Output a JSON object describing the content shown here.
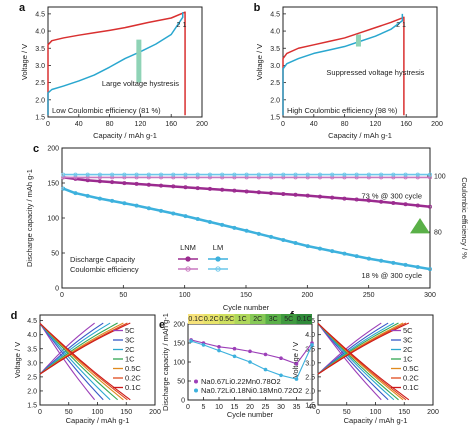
{
  "chart_data": [
    {
      "id": "a",
      "panel_label": "a",
      "type": "line",
      "xlabel": "Capacity / mAh g-1",
      "ylabel": "Voltage / V",
      "xlim": [
        0,
        200
      ],
      "ylim": [
        1.5,
        4.7
      ],
      "xticks": [
        0,
        40,
        80,
        120,
        160,
        200
      ],
      "yticks": [
        1.5,
        2.0,
        2.5,
        3.0,
        3.5,
        4.0,
        4.5
      ],
      "xtick_labels": [
        "0",
        "40",
        "80",
        "120",
        "160",
        "200"
      ],
      "ytick_labels": [
        "1.5",
        "2.0",
        "2.5",
        "3.0",
        "3.5",
        "4.0",
        "4.5"
      ],
      "cycle_labels": [
        "2",
        "1"
      ],
      "annotations": [
        "Large voltage hystresis",
        "Low Coulombic efficiency (81 %)"
      ],
      "series": [
        {
          "name": "1",
          "color": "#d93030",
          "x": [
            0,
            0,
            5,
            20,
            40,
            60,
            80,
            100,
            130,
            160,
            178,
            178
          ],
          "y": [
            1.55,
            3.6,
            3.72,
            3.8,
            3.88,
            3.95,
            4.02,
            4.1,
            4.25,
            4.38,
            4.55,
            1.55
          ]
        },
        {
          "name": "2",
          "color": "#2aa7cf",
          "x": [
            0,
            0,
            5,
            20,
            40,
            60,
            80,
            100,
            120,
            140,
            160,
            175,
            175
          ],
          "y": [
            1.55,
            2.2,
            2.3,
            2.4,
            2.55,
            2.72,
            2.95,
            3.2,
            3.4,
            3.62,
            3.9,
            4.4,
            4.55
          ]
        }
      ]
    },
    {
      "id": "b",
      "panel_label": "b",
      "type": "line",
      "xlabel": "Capacity / mAh g-1",
      "ylabel": "Voltage / V",
      "xlim": [
        0,
        200
      ],
      "ylim": [
        1.5,
        4.7
      ],
      "xticks": [
        0,
        40,
        80,
        120,
        160,
        200
      ],
      "yticks": [
        1.5,
        2.0,
        2.5,
        3.0,
        3.5,
        4.0,
        4.5
      ],
      "xtick_labels": [
        "0",
        "40",
        "80",
        "120",
        "160",
        "200"
      ],
      "ytick_labels": [
        "1.5",
        "2.0",
        "2.5",
        "3.0",
        "3.5",
        "4.0",
        "4.5"
      ],
      "cycle_labels": [
        "2",
        "1"
      ],
      "annotations": [
        "Suppressed voltage hystresis",
        "High Coulombic efficiency (98 %)"
      ],
      "series": [
        {
          "name": "1",
          "color": "#d93030",
          "x": [
            0,
            0,
            5,
            20,
            40,
            60,
            80,
            100,
            120,
            140,
            157,
            157
          ],
          "y": [
            1.55,
            3.2,
            3.35,
            3.5,
            3.6,
            3.7,
            3.8,
            3.95,
            4.1,
            4.25,
            4.4,
            1.55
          ]
        },
        {
          "name": "2",
          "color": "#2aa7cf",
          "x": [
            0,
            0,
            5,
            20,
            40,
            60,
            80,
            100,
            120,
            140,
            155,
            155
          ],
          "y": [
            1.55,
            2.9,
            3.05,
            3.2,
            3.35,
            3.45,
            3.55,
            3.7,
            3.85,
            4.05,
            4.3,
            4.5
          ]
        }
      ]
    },
    {
      "id": "c",
      "panel_label": "c",
      "type": "scatter",
      "xlabel": "Cycle number",
      "ylabel": "Discharge capacity / mAh g-1",
      "y2label": "Coulombic efficiency / %",
      "xlim": [
        0,
        300
      ],
      "ylim": [
        0,
        200
      ],
      "y2lim": [
        60,
        110
      ],
      "xticks": [
        0,
        50,
        100,
        150,
        200,
        250,
        300
      ],
      "yticks": [
        0,
        50,
        100,
        150,
        200
      ],
      "y2ticks": [
        80,
        100
      ],
      "xtick_labels": [
        "0",
        "50",
        "100",
        "150",
        "200",
        "250",
        "300"
      ],
      "ytick_labels": [
        "0",
        "50",
        "100",
        "150",
        "200"
      ],
      "y2tick_labels": [
        "80",
        "100"
      ],
      "legend_columns": [
        "LNM",
        "LM"
      ],
      "legend_rows": [
        "Discharge Capacity",
        "Coulombic efficiency"
      ],
      "annotations": [
        "73 % @ 300 cycle",
        "18 % @ 300 cycle"
      ],
      "series": [
        {
          "name": "LNM Discharge Capacity",
          "color": "#9b2b8f",
          "axis": "left",
          "x": [
            1,
            20,
            50,
            100,
            150,
            200,
            250,
            300
          ],
          "y": [
            158,
            154,
            150,
            144,
            138,
            132,
            125,
            116
          ]
        },
        {
          "name": "LM Discharge Capacity",
          "color": "#3db1dd",
          "axis": "left",
          "x": [
            1,
            10,
            30,
            60,
            100,
            150,
            200,
            250,
            300
          ],
          "y": [
            142,
            136,
            128,
            118,
            103,
            82,
            60,
            42,
            27
          ]
        },
        {
          "name": "LNM Coulombic efficiency",
          "color": "#c978c0",
          "axis": "right",
          "x": [
            1,
            300
          ],
          "y": [
            99.5,
            99.5
          ]
        },
        {
          "name": "LM Coulombic efficiency",
          "color": "#6cc7ea",
          "axis": "right",
          "x": [
            1,
            300
          ],
          "y": [
            100.5,
            100.5
          ]
        }
      ]
    },
    {
      "id": "d",
      "panel_label": "d",
      "type": "line",
      "xlabel": "Capacity / mAh g-1",
      "ylabel": "Voltage / V",
      "xlim": [
        0,
        200
      ],
      "ylim": [
        1.5,
        4.7
      ],
      "xticks": [
        0,
        50,
        100,
        150,
        200
      ],
      "yticks": [
        1.5,
        2.0,
        2.5,
        3.0,
        3.5,
        4.0,
        4.5
      ],
      "xtick_labels": [
        "0",
        "50",
        "100",
        "150",
        "200"
      ],
      "ytick_labels": [
        "1.5",
        "2.0",
        "2.5",
        "3.0",
        "3.5",
        "4.0",
        "4.5"
      ],
      "series": [
        {
          "name": "5C",
          "color": "#9c3fb8",
          "capacity": 95
        },
        {
          "name": "3C",
          "color": "#3759c7",
          "capacity": 110
        },
        {
          "name": "2C",
          "color": "#2aa7cf",
          "capacity": 122
        },
        {
          "name": "1C",
          "color": "#33a853",
          "capacity": 135
        },
        {
          "name": "0.5C",
          "color": "#e08a1e",
          "capacity": 145
        },
        {
          "name": "0.2C",
          "color": "#e04a1e",
          "capacity": 152
        },
        {
          "name": "0.1C",
          "color": "#cc1a1a",
          "capacity": 157
        }
      ]
    },
    {
      "id": "e",
      "panel_label": "e",
      "type": "scatter",
      "xlabel": "Cycle number",
      "ylabel": "Discharge capacity / mAh g-1",
      "xlim": [
        0,
        40
      ],
      "ylim": [
        0,
        200
      ],
      "xticks": [
        0,
        5,
        10,
        15,
        20,
        25,
        30,
        35,
        40
      ],
      "yticks": [
        0,
        50,
        100,
        150,
        200
      ],
      "xtick_labels": [
        "0",
        "5",
        "10",
        "15",
        "20",
        "25",
        "30",
        "35",
        "40"
      ],
      "ytick_labels": [
        "0",
        "50",
        "100",
        "150",
        "200"
      ],
      "rate_labels": [
        "0.1C",
        "0.2C",
        "0.5C",
        "1C",
        "2C",
        "3C",
        "5C",
        "0.1C"
      ],
      "legend": [
        {
          "label": "Na0.67Li0.22Mn0.78O2",
          "color": "#9c3fb8"
        },
        {
          "label": "Na0.72Li0.18Ni0.18Mn0.72O2",
          "color": "#3db1dd"
        }
      ],
      "series": [
        {
          "name": "Na0.67Li0.22Mn0.78O2",
          "color": "#9c3fb8",
          "x": [
            1,
            5,
            10,
            15,
            20,
            25,
            30,
            35,
            40
          ],
          "y": [
            158,
            150,
            140,
            135,
            128,
            120,
            110,
            95,
            150
          ]
        },
        {
          "name": "Na0.72Li0.18Ni0.18Mn0.72O2",
          "color": "#3db1dd",
          "x": [
            1,
            5,
            10,
            15,
            20,
            25,
            30,
            35,
            40
          ],
          "y": [
            155,
            145,
            130,
            115,
            100,
            80,
            65,
            55,
            145
          ]
        }
      ]
    },
    {
      "id": "f",
      "panel_label": "f",
      "type": "line",
      "xlabel": "Capacity / mAh g-1",
      "ylabel": "Voltage / V",
      "xlim": [
        0,
        200
      ],
      "ylim": [
        1.5,
        4.7
      ],
      "xticks": [
        0,
        50,
        100,
        150,
        200
      ],
      "yticks": [
        1.5,
        2.0,
        2.5,
        3.0,
        3.5,
        4.0,
        4.5
      ],
      "xtick_labels": [
        "0",
        "50",
        "100",
        "150",
        "200"
      ],
      "ytick_labels": [
        "1.5",
        "2.0",
        "2.5",
        "3.0",
        "3.5",
        "4.0",
        "4.5"
      ],
      "series": [
        {
          "name": "5C",
          "color": "#9c3fb8",
          "capacity": 110
        },
        {
          "name": "3C",
          "color": "#3759c7",
          "capacity": 122
        },
        {
          "name": "2C",
          "color": "#2aa7cf",
          "capacity": 132
        },
        {
          "name": "1C",
          "color": "#33a853",
          "capacity": 140
        },
        {
          "name": "0.5C",
          "color": "#e08a1e",
          "capacity": 148
        },
        {
          "name": "0.2C",
          "color": "#e04a1e",
          "capacity": 153
        },
        {
          "name": "0.1C",
          "color": "#cc1a1a",
          "capacity": 158
        }
      ]
    }
  ]
}
